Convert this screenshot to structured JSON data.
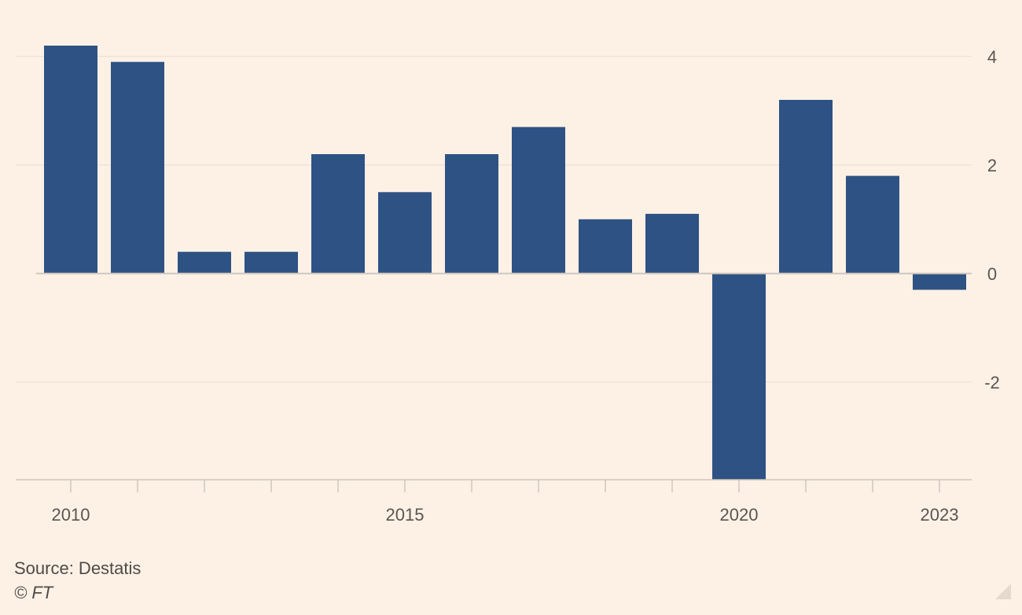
{
  "chart_data": {
    "type": "bar",
    "title": "",
    "xlabel": "",
    "ylabel": "",
    "categories": [
      "2010",
      "2011",
      "2012",
      "2013",
      "2014",
      "2015",
      "2016",
      "2017",
      "2018",
      "2019",
      "2020",
      "2021",
      "2022",
      "2023"
    ],
    "values": [
      4.2,
      3.9,
      0.4,
      0.4,
      2.2,
      1.5,
      2.2,
      2.7,
      1.0,
      1.1,
      -3.8,
      3.2,
      1.8,
      -0.3
    ],
    "ylim": [
      -3.8,
      4.2
    ],
    "yticks": [
      4,
      2,
      0,
      -2
    ],
    "ytick_labels": [
      "4",
      "2",
      "0",
      "-2"
    ],
    "xtick_labels": [
      "2010",
      "2015",
      "2020",
      "2023"
    ],
    "bar_color": "#2E5283",
    "grid_color": "#E9DED3",
    "axis_color": "#CFC6BE",
    "grid": true,
    "y_axis_side": "right"
  },
  "footer": {
    "source": "Source: Destatis",
    "credit": "© FT"
  }
}
